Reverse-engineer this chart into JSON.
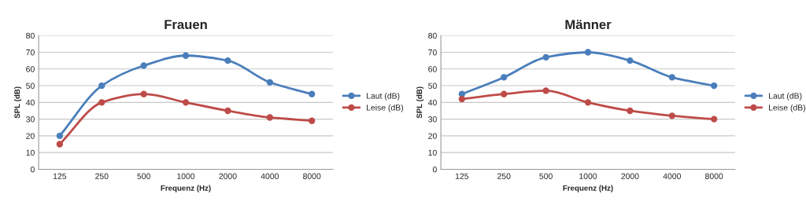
{
  "chart_data": [
    {
      "type": "line",
      "title": "Frauen",
      "xlabel": "Frequenz (Hz)",
      "ylabel": "SPL (dB)",
      "categories": [
        "125",
        "250",
        "500",
        "1000",
        "2000",
        "4000",
        "8000"
      ],
      "ylim": [
        0,
        80
      ],
      "yticks": [
        0,
        10,
        20,
        30,
        40,
        50,
        60,
        70,
        80
      ],
      "grid": "y",
      "legend": "right",
      "marker": "circle",
      "line_style": "solid",
      "series": [
        {
          "name": "Laut (dB)",
          "color": "#4a7ebb",
          "values": [
            20,
            50,
            62,
            68,
            65,
            52,
            45
          ]
        },
        {
          "name": "Leise (dB)",
          "color": "#be4b48",
          "values": [
            15,
            40,
            45,
            40,
            35,
            31,
            29
          ]
        }
      ]
    },
    {
      "type": "line",
      "title": "Männer",
      "xlabel": "Frequenz (Hz)",
      "ylabel": "SPL (dB)",
      "categories": [
        "125",
        "250",
        "500",
        "1000",
        "2000",
        "4000",
        "8000"
      ],
      "ylim": [
        0,
        80
      ],
      "yticks": [
        0,
        10,
        20,
        30,
        40,
        50,
        60,
        70,
        80
      ],
      "grid": "y",
      "legend": "right",
      "marker": "circle",
      "line_style": "solid",
      "series": [
        {
          "name": "Laut (dB)",
          "color": "#4a7ebb",
          "values": [
            45,
            55,
            67,
            70,
            65,
            55,
            50
          ]
        },
        {
          "name": "Leise (dB)",
          "color": "#be4b48",
          "values": [
            42,
            45,
            47,
            40,
            35,
            32,
            30
          ]
        }
      ]
    }
  ]
}
